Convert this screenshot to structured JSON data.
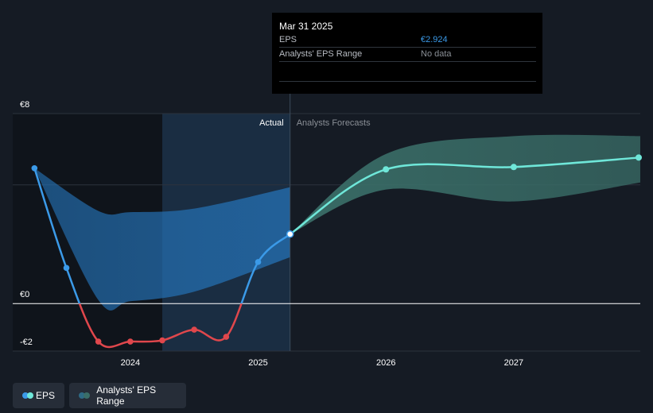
{
  "tooltip": {
    "date": "Mar 31 2025",
    "rows": [
      {
        "label": "EPS",
        "value": "€2.924"
      },
      {
        "label": "Analysts' EPS Range",
        "value": "No data"
      }
    ]
  },
  "legend": [
    {
      "label": "EPS",
      "color_a": "#3b9ae8",
      "color_b": "#6fe7d9"
    },
    {
      "label": "Analysts' EPS Range",
      "color_a": "#2e6b86",
      "color_b": "#3a6e68"
    }
  ],
  "chart_data": {
    "type": "line",
    "y_tick_labels": [
      {
        "value": 8,
        "label": "€8"
      },
      {
        "value": 0,
        "label": "€0"
      },
      {
        "value": -2,
        "label": "-€2"
      }
    ],
    "x_tick_labels": [
      {
        "value": 2024.0,
        "label": "2024"
      },
      {
        "value": 2025.0,
        "label": "2025"
      },
      {
        "value": 2026.0,
        "label": "2026"
      },
      {
        "value": 2027.0,
        "label": "2027"
      }
    ],
    "ylim": [
      -2,
      8
    ],
    "xlim": [
      2023.08,
      2027.99
    ],
    "grid_values": [
      8,
      5,
      0,
      -2
    ],
    "divider_x": 2025.25,
    "past_highlight_start": 2024.25,
    "region_labels": {
      "actual": "Actual",
      "forecast": "Analysts Forecasts"
    },
    "colors": {
      "positive_line": "#3b9ae8",
      "negative_line": "#e0474c",
      "forecast_line": "#6fe7d9",
      "actual_range_fill": "#2470b3",
      "forecast_range_fill": "#3a6e68"
    },
    "series": [
      {
        "name": "EPS",
        "points": [
          {
            "x": 2023.25,
            "y": 5.7
          },
          {
            "x": 2023.5,
            "y": 1.5
          },
          {
            "x": 2023.75,
            "y": -1.6
          },
          {
            "x": 2024.0,
            "y": -1.6
          },
          {
            "x": 2024.25,
            "y": -1.55
          },
          {
            "x": 2024.5,
            "y": -1.1
          },
          {
            "x": 2024.75,
            "y": -1.4
          },
          {
            "x": 2025.0,
            "y": 1.75
          },
          {
            "x": 2025.25,
            "y": 2.924
          }
        ]
      },
      {
        "name": "Forecast",
        "points": [
          {
            "x": 2025.25,
            "y": 2.924
          },
          {
            "x": 2026.0,
            "y": 5.65
          },
          {
            "x": 2027.0,
            "y": 5.75
          },
          {
            "x": 2027.99,
            "y": 6.15
          }
        ]
      }
    ],
    "ranges": [
      {
        "name": "Actual range",
        "upper": [
          {
            "x": 2023.25,
            "y": 5.7
          },
          {
            "x": 2023.75,
            "y": 3.9
          },
          {
            "x": 2024.0,
            "y": 3.85
          },
          {
            "x": 2024.5,
            "y": 4.0
          },
          {
            "x": 2025.25,
            "y": 4.9
          }
        ],
        "lower": [
          {
            "x": 2023.25,
            "y": 5.7
          },
          {
            "x": 2023.75,
            "y": 0.15
          },
          {
            "x": 2024.0,
            "y": 0.1
          },
          {
            "x": 2024.5,
            "y": 0.5
          },
          {
            "x": 2025.25,
            "y": 1.95
          }
        ]
      },
      {
        "name": "Analysts' EPS Range",
        "upper": [
          {
            "x": 2025.25,
            "y": 2.924
          },
          {
            "x": 2026.0,
            "y": 6.3
          },
          {
            "x": 2027.0,
            "y": 7.05
          },
          {
            "x": 2027.99,
            "y": 7.05
          }
        ],
        "lower": [
          {
            "x": 2025.25,
            "y": 2.924
          },
          {
            "x": 2026.0,
            "y": 4.8
          },
          {
            "x": 2027.0,
            "y": 4.3
          },
          {
            "x": 2027.99,
            "y": 5.1
          }
        ]
      }
    ]
  }
}
